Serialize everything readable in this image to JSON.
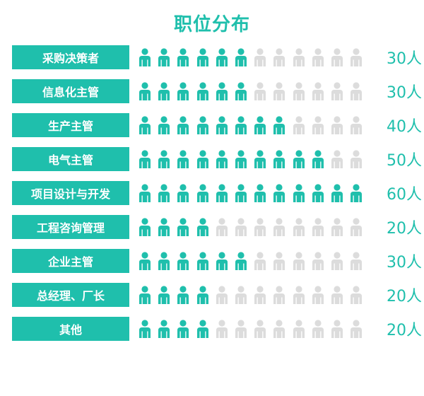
{
  "chart_data": {
    "type": "pictograph",
    "title": "职位分布",
    "unit": "人",
    "icons_per_row": 12,
    "units_per_icon": 5,
    "categories": [
      "采购决策者",
      "信息化主管",
      "生产主管",
      "电气主管",
      "项目设计与开发",
      "工程咨询管理",
      "企业主管",
      "总经理、厂长",
      "其他"
    ],
    "values": [
      30,
      30,
      40,
      50,
      60,
      20,
      30,
      20,
      20
    ],
    "value_labels": [
      "30人",
      "30人",
      "40人",
      "50人",
      "60人",
      "20人",
      "30人",
      "20人",
      "20人"
    ],
    "colors": {
      "accent": "#1fbfac",
      "inactive": "#dcdcdc",
      "label_text": "#ffffff"
    }
  }
}
